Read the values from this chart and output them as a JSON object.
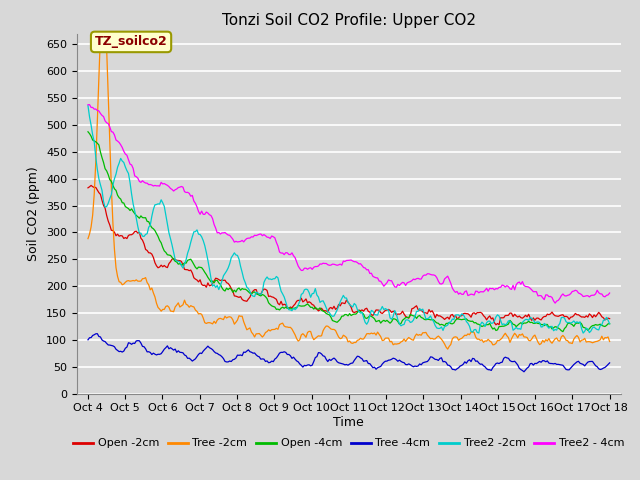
{
  "title": "Tonzi Soil CO2 Profile: Upper CO2",
  "ylabel": "Soil CO2 (ppm)",
  "xlabel": "Time",
  "annotation_text": "TZ_soilco2",
  "annotation_color": "#8B0000",
  "annotation_bg": "#FFFFCC",
  "annotation_border": "#999900",
  "ylim": [
    0,
    670
  ],
  "yticks": [
    0,
    50,
    100,
    150,
    200,
    250,
    300,
    350,
    400,
    450,
    500,
    550,
    600,
    650
  ],
  "x_tick_labels": [
    "Oct 4",
    "Oct 5",
    "Oct 6",
    "Oct 7",
    "Oct 8",
    "Oct 9",
    "Oct 10",
    "Oct 11",
    "Oct 12",
    "Oct 13",
    "Oct 14",
    "Oct 15",
    "Oct 16",
    "Oct 17",
    "Oct 18"
  ],
  "series": [
    {
      "label": "Open -2cm",
      "color": "#DD0000"
    },
    {
      "label": "Tree -2cm",
      "color": "#FF8800"
    },
    {
      "label": "Open -4cm",
      "color": "#00BB00"
    },
    {
      "label": "Tree -4cm",
      "color": "#0000CC"
    },
    {
      "label": "Tree2 -2cm",
      "color": "#00CCCC"
    },
    {
      "label": "Tree2 - 4cm",
      "color": "#FF00FF"
    }
  ],
  "background_color": "#D8D8D8",
  "plot_bg": "#D8D8D8",
  "grid_color": "#FFFFFF",
  "title_fontsize": 11,
  "label_fontsize": 9,
  "tick_fontsize": 8,
  "legend_fontsize": 8,
  "n_points": 336
}
